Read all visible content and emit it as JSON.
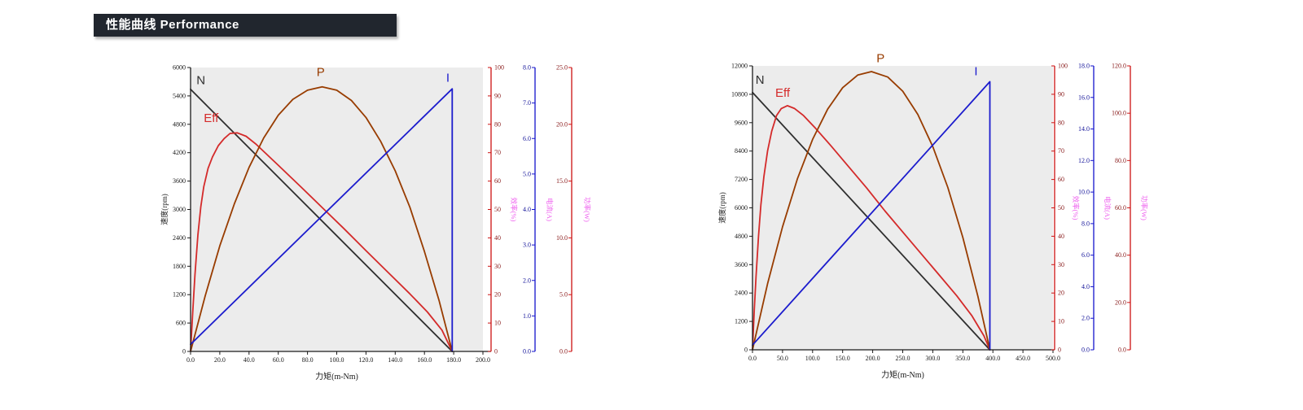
{
  "page": {
    "banner_title": "性能曲线 Performance",
    "banner_bg": "#21262e",
    "banner_text_color": "#ffffff",
    "background": "#ffffff"
  },
  "chart_data": [
    {
      "type": "line",
      "title": "",
      "xlabel": "力矩(m-Nm)",
      "ylabel": "速度(rpm)",
      "x_range": [
        0,
        200
      ],
      "x_ticks": [
        "0.0",
        "20.0",
        "40.0",
        "60.0",
        "80.0",
        "100.0",
        "120.0",
        "140.0",
        "160.0",
        "180.0",
        "200.0"
      ],
      "y_left_range": [
        0,
        6000
      ],
      "y_left_ticks": [
        "6000",
        "5400",
        "4800",
        "4200",
        "3600",
        "3000",
        "2400",
        "1800",
        "1200",
        "600",
        "0"
      ],
      "plot_bg": "#ececec",
      "axis_color": "#1a1a1a",
      "right_axes": [
        {
          "name": "efficiency",
          "title": "效率(%)",
          "range": [
            0,
            100
          ],
          "ticks": [
            "100",
            "90",
            "80",
            "70",
            "60",
            "50",
            "40",
            "30",
            "20",
            "10",
            "0"
          ],
          "line_color": "#cc1212",
          "label_color": "#8b2020",
          "title_color": "#ee5fee"
        },
        {
          "name": "current",
          "title": "电流(A)",
          "range": [
            0,
            8
          ],
          "ticks": [
            "8.0",
            "7.0",
            "6.0",
            "5.0",
            "4.0",
            "3.0",
            "2.0",
            "1.0",
            "0.0"
          ],
          "line_color": "#1414cc",
          "label_color": "#15159a",
          "title_color": "#ee5fee"
        },
        {
          "name": "power",
          "title": "功率(W)",
          "range": [
            0,
            25
          ],
          "ticks": [
            "25.0",
            "20.0",
            "15.0",
            "10.0",
            "5.0",
            "0.0"
          ],
          "line_color": "#cc1212",
          "label_color": "#8b2020",
          "title_color": "#ee5fee"
        }
      ],
      "series": [
        {
          "name": "N",
          "label": "N",
          "color": "#2f2f2f",
          "axis": "left",
          "points": [
            [
              0,
              5540
            ],
            [
              179,
              0
            ]
          ],
          "label_pos": [
            4,
            5650
          ],
          "label_anchor": "start"
        },
        {
          "name": "Eff",
          "label": "Eff",
          "color": "#d42a2a",
          "axis": "efficiency",
          "points": [
            [
              0,
              0
            ],
            [
              1.5,
              14
            ],
            [
              3,
              27
            ],
            [
              5,
              41
            ],
            [
              7,
              51
            ],
            [
              9,
              58
            ],
            [
              12,
              64.5
            ],
            [
              15,
              68.5
            ],
            [
              19,
              72.5
            ],
            [
              23,
              75
            ],
            [
              27,
              76.8
            ],
            [
              32,
              77
            ],
            [
              38,
              75.8
            ],
            [
              45,
              72.9
            ],
            [
              60,
              65.6
            ],
            [
              75,
              58.2
            ],
            [
              90,
              50.7
            ],
            [
              105,
              43.2
            ],
            [
              120,
              35.5
            ],
            [
              135,
              27.9
            ],
            [
              150,
              20.3
            ],
            [
              162,
              13.9
            ],
            [
              172,
              7.5
            ],
            [
              179,
              0
            ]
          ],
          "label_pos": [
            9,
            4850
          ],
          "label_anchor": "start"
        },
        {
          "name": "P",
          "label": "P",
          "color": "#983c00",
          "axis": "power",
          "points": [
            [
              0,
              0
            ],
            [
              10,
              4.9
            ],
            [
              20,
              9.3
            ],
            [
              30,
              13.0
            ],
            [
              40,
              16.2
            ],
            [
              50,
              18.8
            ],
            [
              60,
              20.8
            ],
            [
              70,
              22.2
            ],
            [
              80,
              23.0
            ],
            [
              90,
              23.3
            ],
            [
              100,
              23.0
            ],
            [
              110,
              22.1
            ],
            [
              120,
              20.6
            ],
            [
              130,
              18.5
            ],
            [
              140,
              15.9
            ],
            [
              150,
              12.7
            ],
            [
              160,
              8.8
            ],
            [
              170,
              4.5
            ],
            [
              179,
              0
            ]
          ],
          "label_pos": [
            89,
            5820
          ],
          "label_anchor": "middle"
        },
        {
          "name": "I",
          "label": "I",
          "color": "#1c1ccd",
          "axis": "current",
          "points": [
            [
              0,
              0.2
            ],
            [
              179,
              7.4
            ],
            [
              179,
              0
            ]
          ],
          "label_pos": [
            176,
            5700
          ],
          "label_anchor": "middle"
        }
      ],
      "key_readings": {
        "no_load_speed_rpm": 5540,
        "stall_torque_mNm": 179,
        "peak_power_W": 23.3,
        "peak_efficiency_pct": 77,
        "max_current_A": 7.4
      }
    },
    {
      "type": "line",
      "title": "",
      "xlabel": "力矩(m-Nm)",
      "ylabel": "速度(rpm)",
      "x_range": [
        0,
        500
      ],
      "x_ticks": [
        "0.0",
        "50.0",
        "100.0",
        "150.0",
        "200.0",
        "250.0",
        "300.0",
        "350.0",
        "400.0",
        "450.0",
        "500.0"
      ],
      "y_left_range": [
        0,
        12000
      ],
      "y_left_ticks": [
        "12000",
        "10800",
        "9600",
        "8400",
        "7200",
        "6000",
        "4800",
        "3600",
        "2400",
        "1200",
        "0"
      ],
      "plot_bg": "#ececec",
      "axis_color": "#1a1a1a",
      "right_axes": [
        {
          "name": "efficiency",
          "title": "效率(%)",
          "range": [
            0,
            100
          ],
          "ticks": [
            "100",
            "90",
            "80",
            "70",
            "60",
            "50",
            "40",
            "30",
            "20",
            "10",
            "0"
          ],
          "line_color": "#cc1212",
          "label_color": "#8b2020",
          "title_color": "#ee5fee"
        },
        {
          "name": "current",
          "title": "电流(A)",
          "range": [
            0,
            18
          ],
          "ticks": [
            "18.0",
            "16.0",
            "14.0",
            "12.0",
            "10.0",
            "8.0",
            "6.0",
            "4.0",
            "2.0",
            "0.0"
          ],
          "line_color": "#1414cc",
          "label_color": "#15159a",
          "title_color": "#ee5fee"
        },
        {
          "name": "power",
          "title": "功率(W)",
          "range": [
            0,
            120
          ],
          "ticks": [
            "120.0",
            "100.0",
            "80.0",
            "60.0",
            "40.0",
            "20.0",
            "0.0"
          ],
          "line_color": "#cc1212",
          "label_color": "#8b2020",
          "title_color": "#ee5fee"
        }
      ],
      "series": [
        {
          "name": "N",
          "label": "N",
          "color": "#2f2f2f",
          "axis": "left",
          "points": [
            [
              0,
              10880
            ],
            [
              395,
              0
            ]
          ],
          "label_pos": [
            5,
            11250
          ],
          "label_anchor": "start"
        },
        {
          "name": "Eff",
          "label": "Eff",
          "color": "#d42a2a",
          "axis": "efficiency",
          "points": [
            [
              0,
              0
            ],
            [
              3,
              14
            ],
            [
              6,
              26
            ],
            [
              10,
              40
            ],
            [
              14,
              51
            ],
            [
              19,
              61
            ],
            [
              25,
              70
            ],
            [
              32,
              77
            ],
            [
              40,
              82.5
            ],
            [
              48,
              85
            ],
            [
              58,
              86
            ],
            [
              70,
              85
            ],
            [
              85,
              82.5
            ],
            [
              105,
              78
            ],
            [
              130,
              72
            ],
            [
              160,
              64.5
            ],
            [
              190,
              57
            ],
            [
              220,
              49
            ],
            [
              250,
              41.5
            ],
            [
              280,
              34
            ],
            [
              310,
              26.5
            ],
            [
              340,
              19
            ],
            [
              365,
              12
            ],
            [
              385,
              5
            ],
            [
              395,
              0
            ]
          ],
          "label_pos": [
            38,
            10700
          ],
          "label_anchor": "start"
        },
        {
          "name": "P",
          "label": "P",
          "color": "#983c00",
          "axis": "power",
          "points": [
            [
              0,
              0
            ],
            [
              25,
              27.9
            ],
            [
              50,
              52
            ],
            [
              75,
              72.4
            ],
            [
              100,
              88.9
            ],
            [
              125,
              101.7
            ],
            [
              150,
              110.8
            ],
            [
              175,
              116.1
            ],
            [
              198,
              117.6
            ],
            [
              225,
              115.3
            ],
            [
              250,
              109.3
            ],
            [
              275,
              99.5
            ],
            [
              300,
              85.9
            ],
            [
              325,
              68.6
            ],
            [
              350,
              47.5
            ],
            [
              375,
              22.6
            ],
            [
              395,
              0
            ]
          ],
          "label_pos": [
            213,
            12150
          ],
          "label_anchor": "middle"
        },
        {
          "name": "I",
          "label": "I",
          "color": "#1c1ccd",
          "axis": "current",
          "points": [
            [
              0,
              0.3
            ],
            [
              395,
              17
            ],
            [
              395,
              0
            ]
          ],
          "label_pos": [
            372,
            11600
          ],
          "label_anchor": "middle"
        }
      ],
      "key_readings": {
        "no_load_speed_rpm": 10880,
        "stall_torque_mNm": 395,
        "peak_power_W": 117.6,
        "peak_efficiency_pct": 86,
        "max_current_A": 17.0
      }
    }
  ]
}
